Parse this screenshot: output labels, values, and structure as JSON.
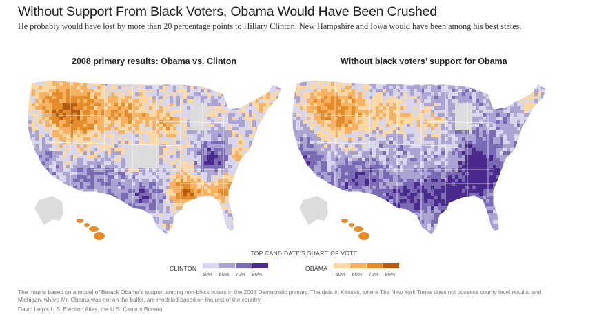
{
  "headline": "Without Support From Black Voters, Obama Would Have Been Crushed",
  "subhead": "He probably would have lost by more than 20 percentage points to Hillary Clinton. New Hampshire and Iowa would have been among his best states.",
  "maps": [
    {
      "title": "2008 primary results: Obama vs. Clinton",
      "scenario": "actual"
    },
    {
      "title": "Without black voters’ support for Obama",
      "scenario": "counterfactual"
    }
  ],
  "legend": {
    "title": "TOP CANDIDATE'S SHARE OF VOTE",
    "clinton": {
      "label": "CLINTON",
      "ticks": [
        "50%",
        "60%",
        "70%",
        "80%"
      ],
      "colors": [
        "#d8d6ea",
        "#aba4d2",
        "#7b6bb4",
        "#4a2a8c"
      ]
    },
    "obama": {
      "label": "OBAMA",
      "ticks": [
        "50%",
        "60%",
        "70%",
        "80%"
      ],
      "colors": [
        "#fcd9a4",
        "#f6b163",
        "#e48b2a",
        "#b55d10"
      ]
    },
    "no_data_color": "#dcdcdc"
  },
  "note": "The map is based on a model of Barack Obama's support among non-black voters in the 2008 Democratic primary. The data in Kansas, where The New York Times does not possess county level results, and Michigan, where Mr. Obama was not on the ballot, are modeled based on the rest of the country.",
  "source": "David Leip's U.S. Election Atlas, the U.S. Census Bureau"
}
